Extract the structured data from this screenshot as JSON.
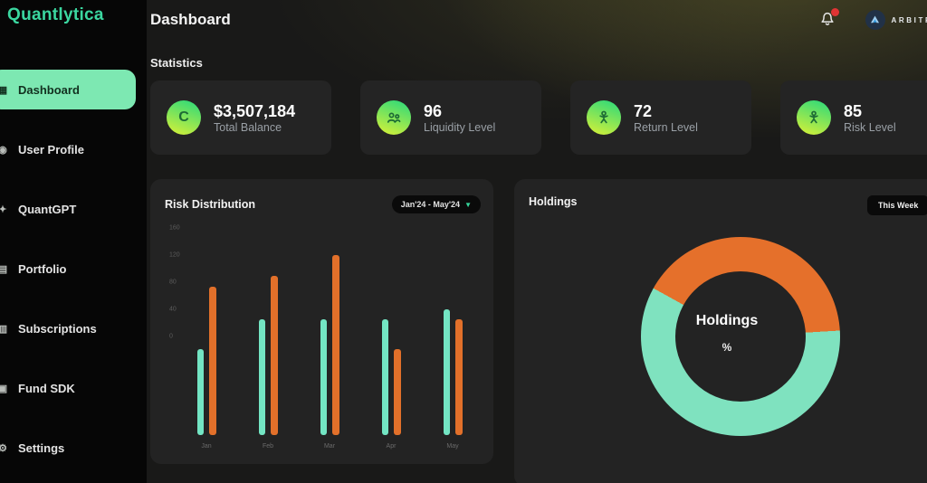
{
  "app": {
    "logo": "Quantlytica",
    "accent": "#3bd7a0"
  },
  "sidebar": {
    "items": [
      {
        "label": "Dashboard",
        "icon": "grid-icon",
        "glyph": "▦",
        "active": true
      },
      {
        "label": "User Profile",
        "icon": "user-icon",
        "glyph": "◉",
        "active": false
      },
      {
        "label": "QuantGPT",
        "icon": "sparkle-icon",
        "glyph": "✦",
        "active": false
      },
      {
        "label": "Portfolio",
        "icon": "briefcase-icon",
        "glyph": "▤",
        "active": false
      },
      {
        "label": "Subscriptions",
        "icon": "layers-icon",
        "glyph": "▥",
        "active": false
      },
      {
        "label": "Fund SDK",
        "icon": "box-icon",
        "glyph": "▣",
        "active": false
      },
      {
        "label": "Settings",
        "icon": "gear-icon",
        "glyph": "⚙",
        "active": false
      }
    ]
  },
  "header": {
    "title": "Dashboard",
    "notifications": {
      "icon": "bell-icon",
      "has_alert": true,
      "alert_color": "#e03434"
    },
    "partner": {
      "name": "ARBITRUM",
      "logo_icon": "arbitrum-logo-icon",
      "logo_bg": "#213147"
    }
  },
  "stats": {
    "section_label": "Statistics",
    "cards": [
      {
        "icon": "coin-icon",
        "glyph": "C",
        "value": "$3,507,184",
        "label": "Total Balance"
      },
      {
        "icon": "people-icon",
        "value": "96",
        "label": "Liquidity Level"
      },
      {
        "icon": "person-icon",
        "value": "72",
        "label": "Return Level"
      },
      {
        "icon": "person-icon",
        "value": "85",
        "label": "Risk Level"
      }
    ],
    "icon_gradient": [
      "#35da77",
      "#cdef3b"
    ]
  },
  "chart_data": [
    {
      "type": "bar",
      "title": "Risk Distribution",
      "period_selector": "Jan'24 - May'24",
      "chevron": "▼",
      "categories": [
        "Jan",
        "Feb",
        "Mar",
        "Apr",
        "May"
      ],
      "series": [
        {
          "name": "mint",
          "color": "#73e5c3",
          "values": [
            68,
            92,
            92,
            92,
            100
          ]
        },
        {
          "name": "orange",
          "color": "#e2702a",
          "values": [
            118,
            126,
            143,
            68,
            92
          ]
        }
      ],
      "ylim": [
        0,
        160
      ],
      "yticks": [
        160,
        120,
        80,
        40,
        0
      ],
      "grid": false,
      "legend_position": "none"
    },
    {
      "type": "pie",
      "title": "Holdings",
      "badge": "This Week",
      "center_label": "Holdings",
      "center_sub": "%",
      "start_angle_deg": 299,
      "slices": [
        {
          "name": "orange",
          "value": 41,
          "color": "#e5702b"
        },
        {
          "name": "mint",
          "value": 59,
          "color": "#7fe2bf"
        }
      ],
      "legend_position": "none"
    }
  ]
}
